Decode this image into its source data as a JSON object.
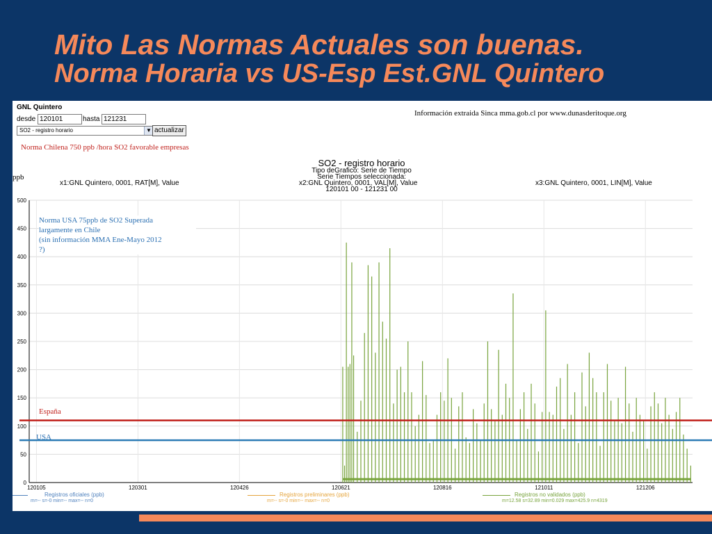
{
  "slide": {
    "title_line1": "Mito  Las Normas Actuales son buenas.",
    "title_line2": "Norma Horaria  vs US-Esp  Est.GNL Quintero"
  },
  "form": {
    "station": "GNL Quintero",
    "desde_label": "desde",
    "desde_value": "120101",
    "hasta_label": "hasta",
    "hasta_value": "121231",
    "select_value": "SO2 - registro horario",
    "button_label": "actualizar"
  },
  "source_note": "Información extraida Sinca mma.gob.cl  por www.dunasderitoque.org",
  "annotations": {
    "chilean_norm": "Norma Chilena 750 ppb /hora SO2 favorable empresas",
    "usa_norm_l1": "Norma USA 75ppb de SO2 Superada",
    "usa_norm_l2": "largamente en Chile",
    "usa_norm_l3": "(sin información MMA Ene-Mayo 2012",
    "usa_norm_l4": "?)",
    "espana": "España",
    "usa": "USA"
  },
  "chart_header": {
    "title": "SO2 - registro horario",
    "sub1": "Tipo deGrafico: Serie de Tiempo",
    "sub2": "Serie Tiempos seleccionada:",
    "x1": "x1:GNL Quintero, 0001, RAT[M], Value",
    "x2": "x2:GNL Quintero, 0001, VAL[M], Value",
    "x3": "x3:GNL Quintero, 0001, LIN[M], Value",
    "range": "120101 00 - 121231 00",
    "unit": "ppb"
  },
  "legend": [
    {
      "label": "Registros oficiales (ppb)",
      "stats": "m=-- s=-0 min=-- max=-- n=0",
      "color": "#4f81bd"
    },
    {
      "label": "Registros preliminares (ppb)",
      "stats": "m=-- s=-0 min=-- max=-- n=0",
      "color": "#e5a43b"
    },
    {
      "label": "Registros no validados (ppb)",
      "stats": "m=12.58 s=32.89 min=0.029 max=425.9 n=4319",
      "color": "#77a33b"
    }
  ],
  "chart_data": {
    "type": "line",
    "x_ticks": [
      "120105",
      "120301",
      "120426",
      "120621",
      "120816",
      "121011",
      "121206"
    ],
    "y_ticks": [
      0,
      50,
      100,
      150,
      200,
      250,
      300,
      350,
      400,
      450,
      500
    ],
    "ylim": [
      0,
      500
    ],
    "xlim_days": [
      0,
      366
    ],
    "series": [
      {
        "name": "Registros no validados (ppb)",
        "color": "#77a33b",
        "x_days": [
          173,
          174,
          175,
          176,
          177,
          178,
          179,
          181,
          183,
          185,
          187,
          189,
          191,
          193,
          195,
          197,
          199,
          201,
          203,
          205,
          207,
          209,
          211,
          213,
          215,
          217,
          219,
          221,
          223,
          225,
          227,
          229,
          231,
          233,
          235,
          237,
          239,
          241,
          243,
          245,
          247,
          249,
          251,
          253,
          255,
          257,
          259,
          261,
          263,
          265,
          267,
          269,
          271,
          273,
          275,
          277,
          279,
          281,
          283,
          285,
          287,
          289,
          291,
          293,
          295,
          297,
          299,
          301,
          303,
          305,
          307,
          309,
          311,
          313,
          315,
          317,
          319,
          321,
          323,
          325,
          327,
          329,
          331,
          333,
          335,
          337,
          339,
          341,
          343,
          345,
          347,
          349,
          351,
          353,
          355,
          357,
          359,
          361,
          363,
          365
        ],
        "values": [
          205,
          30,
          425,
          205,
          210,
          390,
          225,
          90,
          145,
          265,
          385,
          365,
          230,
          390,
          285,
          255,
          415,
          140,
          200,
          205,
          160,
          250,
          160,
          100,
          120,
          215,
          155,
          70,
          75,
          120,
          160,
          145,
          220,
          150,
          60,
          135,
          160,
          80,
          70,
          130,
          105,
          75,
          140,
          250,
          130,
          110,
          235,
          120,
          175,
          150,
          335,
          75,
          130,
          160,
          95,
          175,
          140,
          55,
          125,
          305,
          125,
          120,
          170,
          185,
          95,
          210,
          120,
          160,
          70,
          195,
          135,
          230,
          185,
          160,
          65,
          160,
          210,
          145,
          110,
          150,
          105,
          205,
          140,
          90,
          150,
          120,
          110,
          60,
          135,
          160,
          140,
          105,
          150,
          120,
          95,
          125,
          150,
          85,
          60,
          30
        ]
      }
    ],
    "reference_lines": [
      {
        "name": "España",
        "value": 110,
        "color": "#c0201b"
      },
      {
        "name": "USA",
        "value": 75,
        "color": "#2a7ab5"
      }
    ],
    "grid": true
  }
}
